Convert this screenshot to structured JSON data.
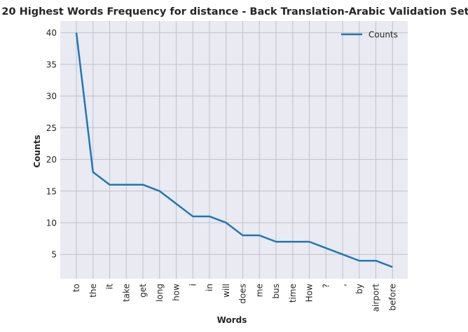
{
  "chart_data": {
    "type": "line",
    "title": "20 Highest Words Frequency for distance - Back Translation-Arabic Validation Set",
    "xlabel": "Words",
    "ylabel": "Counts",
    "categories": [
      "to",
      "the",
      "it",
      "take",
      "get",
      "long",
      "how",
      "i",
      "in",
      "will",
      "does",
      "me",
      "bus",
      "time",
      "How",
      "?",
      ",",
      "by",
      "airport",
      "before"
    ],
    "series": [
      {
        "name": "Counts",
        "values": [
          40,
          18,
          16,
          16,
          16,
          15,
          13,
          11,
          11,
          10,
          8,
          8,
          7,
          7,
          7,
          6,
          5,
          4,
          4,
          3
        ],
        "color": "#1f77b4"
      }
    ],
    "yticks": [
      5,
      10,
      15,
      20,
      25,
      30,
      35,
      40
    ],
    "ylim": [
      1.15,
      41.85
    ],
    "grid": true,
    "legend_position": "top-right",
    "colors": {
      "plot_background": "#eaeaf2",
      "grid": "#c0c0c8",
      "line": "#1f77b4"
    }
  }
}
